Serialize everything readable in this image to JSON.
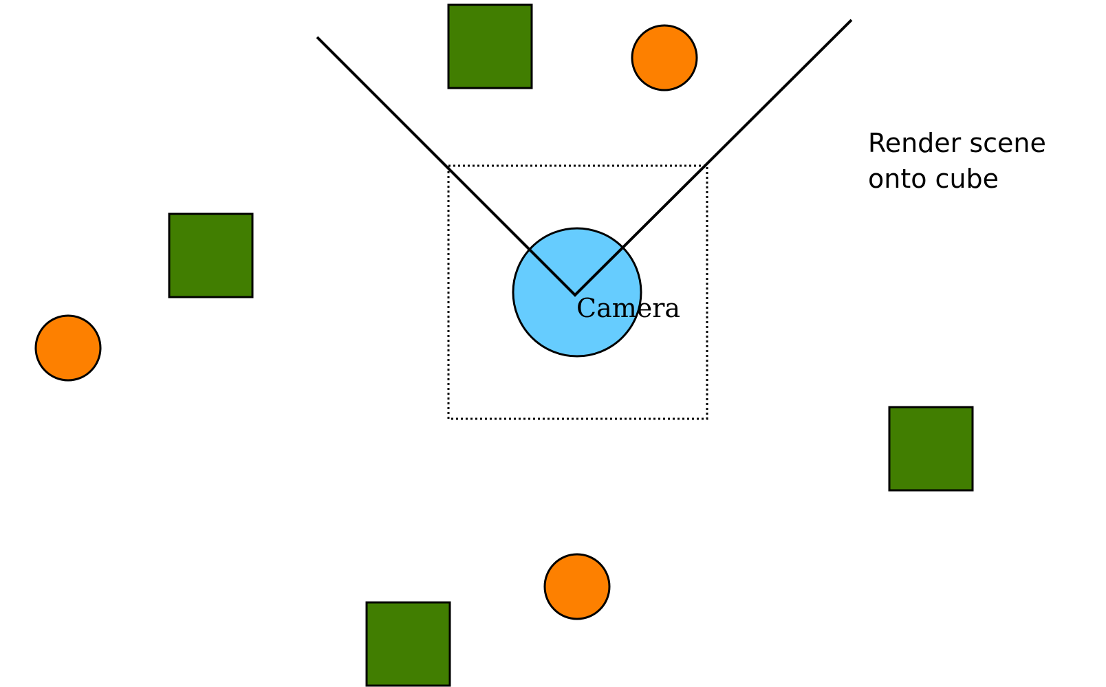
{
  "diagram": {
    "caption_lines": [
      "Render scene",
      "onto cube"
    ],
    "camera_label": "Camera"
  },
  "colors": {
    "square_fill": "#417e01",
    "circle_fill": "#fd8000",
    "camera_fill": "#66ccfe",
    "stroke": "#000000"
  },
  "icons": {
    "square": "green-square-object",
    "circle": "orange-circle-object",
    "camera": "camera-circle"
  }
}
